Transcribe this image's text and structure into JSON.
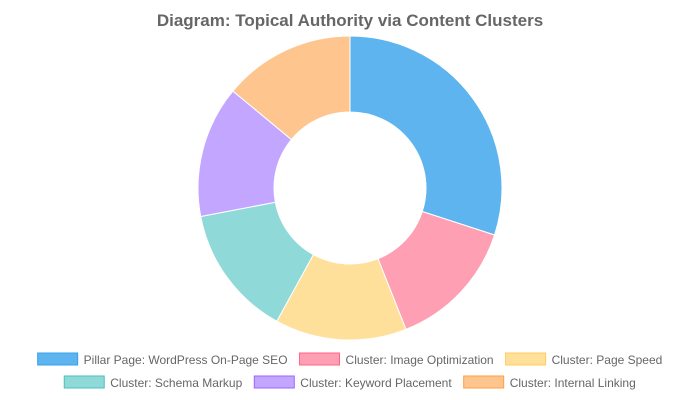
{
  "chart_data": {
    "type": "pie",
    "variant": "doughnut",
    "title": "Diagram: Topical Authority via Content Clusters",
    "categories": [
      "Pillar Page: WordPress On-Page SEO",
      "Cluster: Image Optimization",
      "Cluster: Page Speed",
      "Cluster: Schema Markup",
      "Cluster: Keyword Placement",
      "Cluster: Internal Linking"
    ],
    "values": [
      30,
      14,
      14,
      14,
      14,
      14
    ],
    "colors": [
      "#5eb4ef",
      "#ff9fb3",
      "#ffe09a",
      "#8fd9d9",
      "#c3a6ff",
      "#ffc58f"
    ],
    "borders": [
      "#36a2eb",
      "#ff6384",
      "#ffce56",
      "#4bc0c0",
      "#9966ff",
      "#ff9f40"
    ],
    "legend_position": "bottom"
  }
}
